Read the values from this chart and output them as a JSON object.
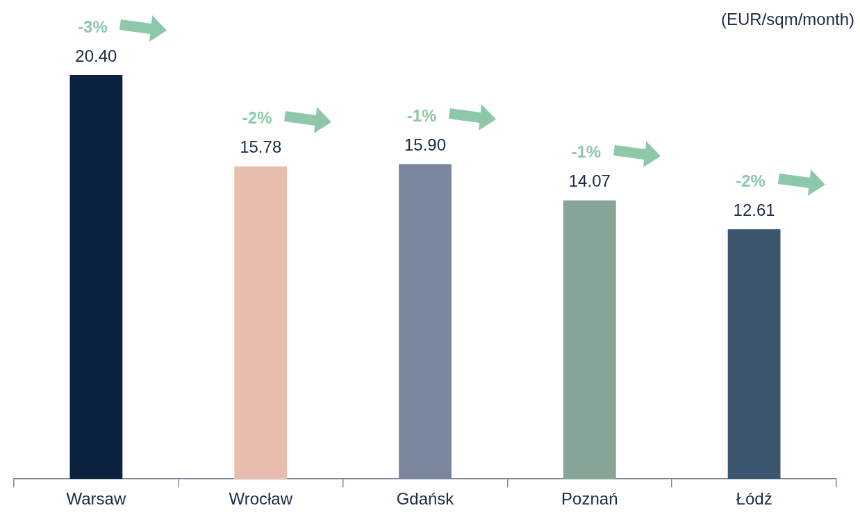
{
  "chart_data": {
    "type": "bar",
    "ylabel": "(EUR/sqm/month)",
    "categories": [
      "Warsaw",
      "Wrocław",
      "Gdańsk",
      "Poznań",
      "Łódź"
    ],
    "values": [
      20.4,
      15.78,
      15.9,
      14.07,
      12.61
    ],
    "colors": [
      "#0a2240",
      "#e9bdad",
      "#7a859e",
      "#87a597",
      "#3b556f"
    ],
    "value_labels": [
      "20.40",
      "15.78",
      "15.90",
      "14.07",
      "12.61"
    ],
    "grid": false,
    "legend": false,
    "annotations": [
      "-3%",
      "-2%",
      "-1%",
      "-1%",
      "-2%"
    ]
  }
}
